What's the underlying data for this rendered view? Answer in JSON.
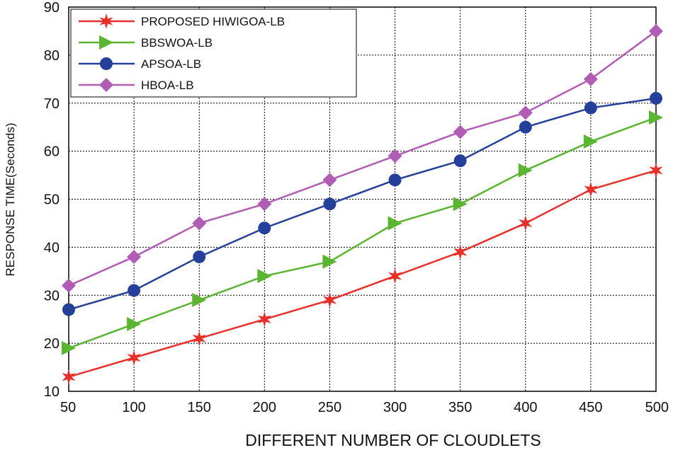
{
  "chart_data": {
    "type": "line",
    "xlabel": "DIFFERENT NUMBER OF CLOUDLETS",
    "ylabel": "RESPONSE TIME(Seconds)",
    "x": [
      50,
      100,
      150,
      200,
      250,
      300,
      350,
      400,
      450,
      500
    ],
    "xlim": [
      50,
      500
    ],
    "ylim": [
      10,
      90
    ],
    "xticks": [
      "50",
      "100",
      "150",
      "200",
      "250",
      "300",
      "350",
      "400",
      "450",
      "500"
    ],
    "yticks": [
      "10",
      "20",
      "30",
      "40",
      "50",
      "60",
      "70",
      "80",
      "90"
    ],
    "grid": true,
    "legend_position": "top-left",
    "series": [
      {
        "name": "PROPOSED HIWIGOA-LB",
        "marker": "star",
        "color": "#e8302a",
        "values": [
          13,
          17,
          21,
          25,
          29,
          34,
          39,
          45,
          52,
          56
        ]
      },
      {
        "name": "BBSWOA-LB",
        "marker": "triangle-right",
        "color": "#5ab531",
        "values": [
          19,
          24,
          29,
          34,
          37,
          45,
          49,
          56,
          62,
          67
        ]
      },
      {
        "name": "APSOA-LB",
        "marker": "circle",
        "color": "#24409a",
        "values": [
          27,
          31,
          38,
          44,
          49,
          54,
          58,
          65,
          69,
          71
        ]
      },
      {
        "name": "HBOA-LB",
        "marker": "diamond",
        "color": "#b15cb5",
        "values": [
          32,
          38,
          45,
          49,
          54,
          59,
          64,
          68,
          75,
          85
        ]
      }
    ]
  }
}
